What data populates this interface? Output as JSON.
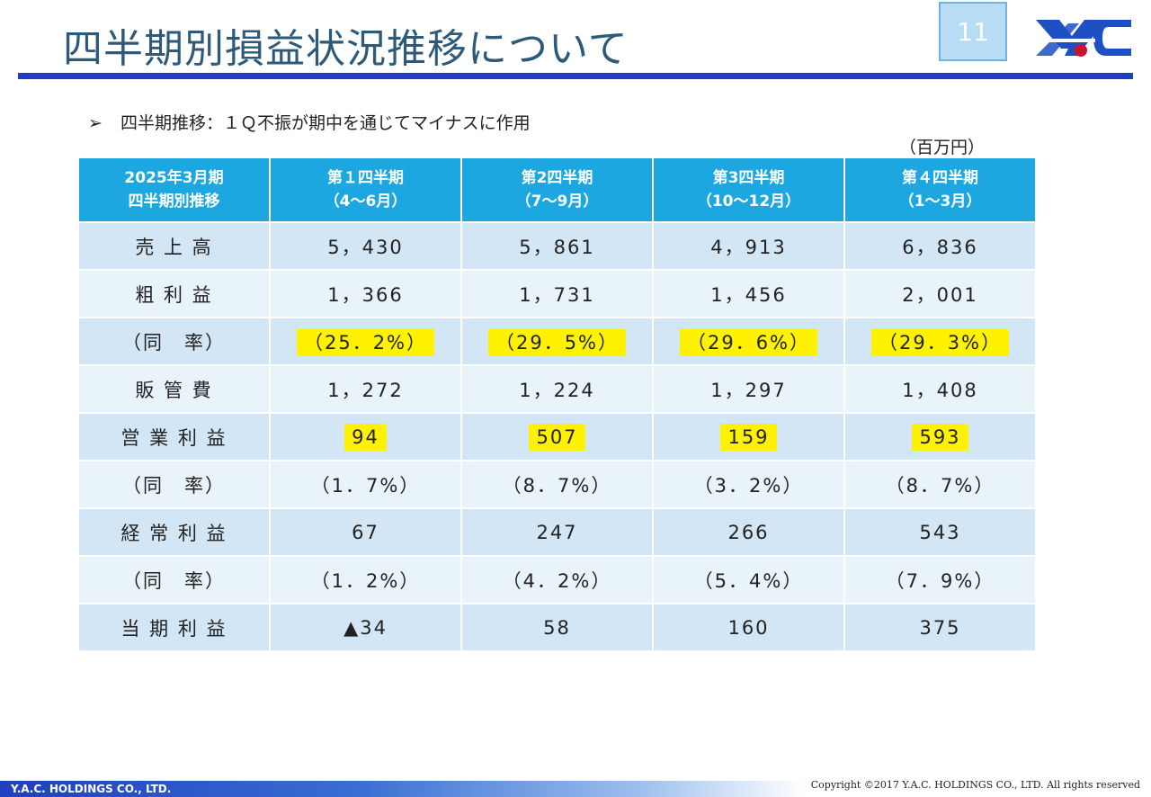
{
  "title": "四半期別損益状況推移について",
  "page_number": "11",
  "bullet": {
    "arrow": "➢",
    "text": "四半期推移：１Ｑ不振が期中を通じてマイナスに作用"
  },
  "unit": "（百万円）",
  "table": {
    "headers": [
      [
        "2025年3月期",
        "四半期別推移"
      ],
      [
        "第１四半期",
        "（4～6月）"
      ],
      [
        "第2四半期",
        "（7～9月）"
      ],
      [
        "第3四半期",
        "（10～12月）"
      ],
      [
        "第４四半期",
        "（1～3月）"
      ]
    ],
    "rows": [
      {
        "label": "売 上 高",
        "values": [
          "5，430",
          "5，861",
          "4，913",
          "6，836"
        ],
        "highlight": false
      },
      {
        "label": "粗 利 益",
        "values": [
          "1，366",
          "1，731",
          "1，456",
          "2，001"
        ],
        "highlight": false
      },
      {
        "label": "（同　率）",
        "values": [
          "（25．2%）",
          "（29．5%）",
          "（29．6%）",
          "（29．3%）"
        ],
        "highlight": true
      },
      {
        "label": "販 管 費",
        "values": [
          "1，272",
          "1，224",
          "1，297",
          "1，408"
        ],
        "highlight": false
      },
      {
        "label": "営 業 利 益",
        "values": [
          "94",
          "507",
          "159",
          "593"
        ],
        "highlight": true
      },
      {
        "label": "（同　率）",
        "values": [
          "（1．7%）",
          "（8．7%）",
          "（3．2%）",
          "（8．7%）"
        ],
        "highlight": false
      },
      {
        "label": "経 常 利 益",
        "values": [
          "67",
          "247",
          "266",
          "543"
        ],
        "highlight": false
      },
      {
        "label": "（同　率）",
        "values": [
          "（1．2%）",
          "（4．2%）",
          "（5．4%）",
          "（7．9%）"
        ],
        "highlight": false
      },
      {
        "label": "当 期 利 益",
        "values": [
          "▲34",
          "58",
          "160",
          "375"
        ],
        "highlight": false
      }
    ]
  },
  "footer": {
    "company": "Y.A.C. HOLDINGS CO., LTD.",
    "copyright": "Copyright ©2017 Y.A.C. HOLDINGS CO., LTD.  All rights reserved"
  },
  "colors": {
    "title": "#2d5a78",
    "rule": "#1f3fbf",
    "header_bg": "#1ca7e1",
    "row_dark": "#d2e6f5",
    "row_light": "#e9f3fa",
    "highlight": "#fff200",
    "logo_blue": "#1f4fc4",
    "logo_dot": "#d0112b"
  },
  "logo": {
    "icon": "yac-logo-icon"
  }
}
